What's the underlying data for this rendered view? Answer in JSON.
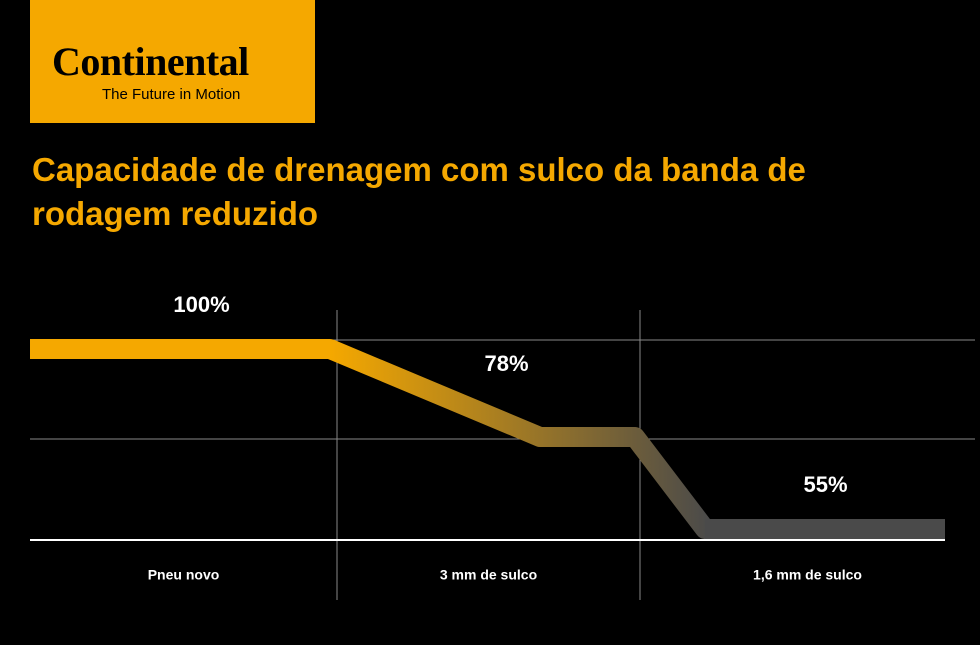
{
  "header": {
    "brand": "Continental",
    "tagline": "The Future in Motion"
  },
  "chart_data": {
    "type": "line",
    "title": "Capacidade de drenagem com sulco da banda de rodagem reduzido",
    "categories": [
      "Pneu novo",
      "3 mm de sulco",
      "1,6 mm de sulco"
    ],
    "values": [
      100,
      78,
      55
    ],
    "value_labels": [
      "100%",
      "78%",
      "55%"
    ],
    "color": "#f5a800",
    "end_color": "#4a4a4a"
  }
}
